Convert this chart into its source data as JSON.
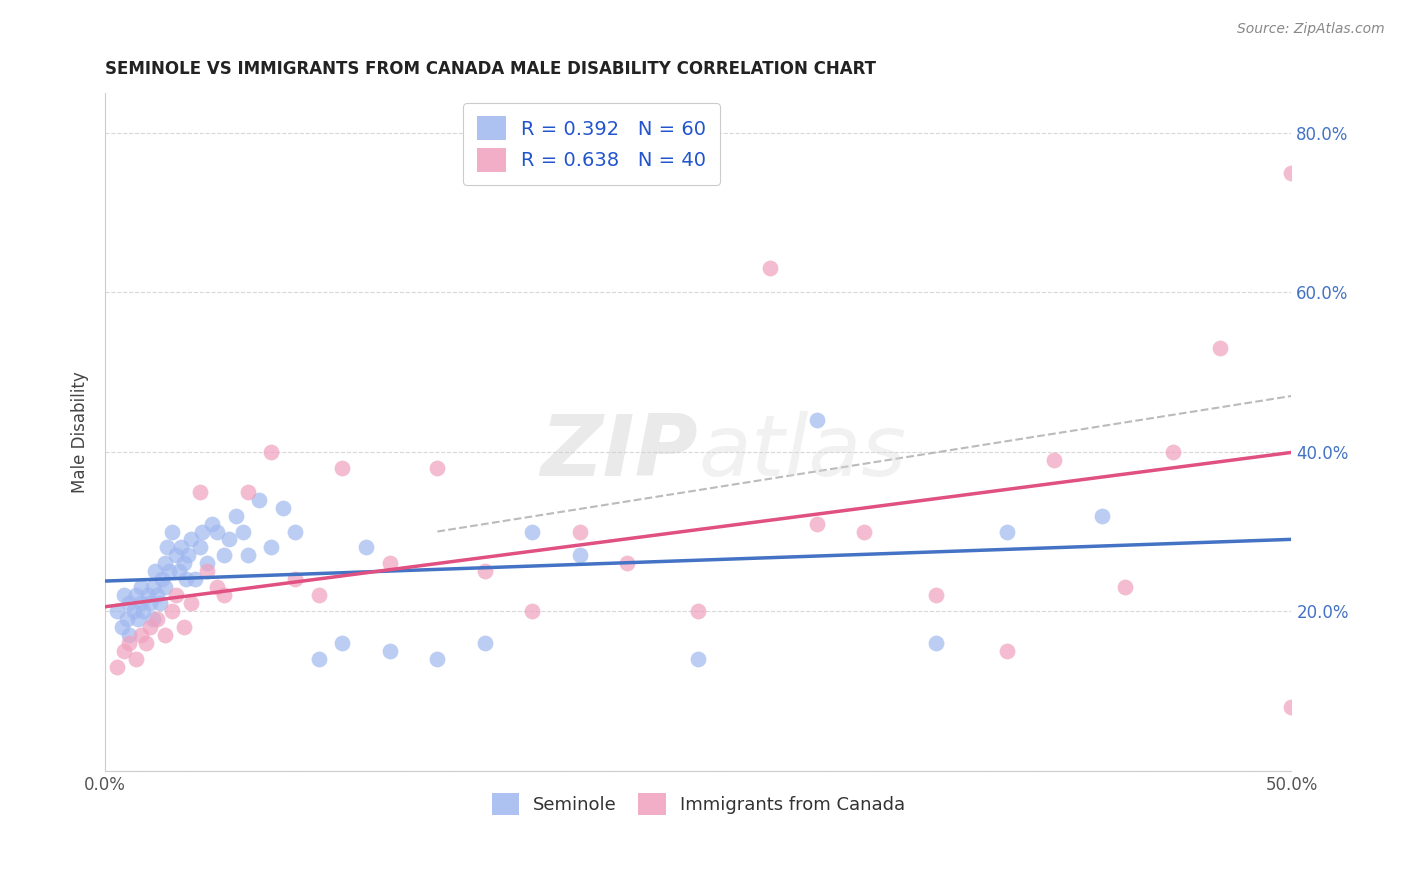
{
  "title": "SEMINOLE VS IMMIGRANTS FROM CANADA MALE DISABILITY CORRELATION CHART",
  "source": "Source: ZipAtlas.com",
  "ylabel": "Male Disability",
  "xlim": [
    0.0,
    0.5
  ],
  "ylim": [
    0.0,
    0.85
  ],
  "xticks": [
    0.0,
    0.1,
    0.2,
    0.3,
    0.4,
    0.5
  ],
  "xtick_labels": [
    "0.0%",
    "",
    "",
    "",
    "",
    "50.0%"
  ],
  "yticks": [
    0.0,
    0.2,
    0.4,
    0.6,
    0.8
  ],
  "ytick_labels": [
    "",
    "20.0%",
    "40.0%",
    "60.0%",
    "80.0%"
  ],
  "background_color": "#ffffff",
  "grid_color": "#d8d8d8",
  "seminole_color": "#a0b8f0",
  "canada_color": "#f0a0be",
  "seminole_line_color": "#4472c4",
  "canada_line_color": "#e05080",
  "dash_color": "#aaaaaa",
  "seminole_R": 0.392,
  "seminole_N": 60,
  "canada_R": 0.638,
  "canada_N": 40,
  "watermark": "ZIPatlas",
  "seminole_x": [
    0.005,
    0.007,
    0.008,
    0.009,
    0.01,
    0.01,
    0.012,
    0.013,
    0.014,
    0.015,
    0.015,
    0.016,
    0.018,
    0.019,
    0.02,
    0.02,
    0.021,
    0.022,
    0.023,
    0.024,
    0.025,
    0.025,
    0.026,
    0.027,
    0.028,
    0.03,
    0.031,
    0.032,
    0.033,
    0.034,
    0.035,
    0.036,
    0.038,
    0.04,
    0.041,
    0.043,
    0.045,
    0.047,
    0.05,
    0.052,
    0.055,
    0.058,
    0.06,
    0.065,
    0.07,
    0.075,
    0.08,
    0.09,
    0.1,
    0.11,
    0.12,
    0.14,
    0.16,
    0.18,
    0.2,
    0.25,
    0.3,
    0.35,
    0.38,
    0.42
  ],
  "seminole_y": [
    0.2,
    0.18,
    0.22,
    0.19,
    0.21,
    0.17,
    0.2,
    0.22,
    0.19,
    0.21,
    0.23,
    0.2,
    0.22,
    0.21,
    0.23,
    0.19,
    0.25,
    0.22,
    0.21,
    0.24,
    0.26,
    0.23,
    0.28,
    0.25,
    0.3,
    0.27,
    0.25,
    0.28,
    0.26,
    0.24,
    0.27,
    0.29,
    0.24,
    0.28,
    0.3,
    0.26,
    0.31,
    0.3,
    0.27,
    0.29,
    0.32,
    0.3,
    0.27,
    0.34,
    0.28,
    0.33,
    0.3,
    0.14,
    0.16,
    0.28,
    0.15,
    0.14,
    0.16,
    0.3,
    0.27,
    0.14,
    0.44,
    0.16,
    0.3,
    0.32
  ],
  "canada_x": [
    0.005,
    0.008,
    0.01,
    0.013,
    0.015,
    0.017,
    0.019,
    0.022,
    0.025,
    0.028,
    0.03,
    0.033,
    0.036,
    0.04,
    0.043,
    0.047,
    0.05,
    0.06,
    0.07,
    0.08,
    0.09,
    0.1,
    0.12,
    0.14,
    0.16,
    0.18,
    0.2,
    0.22,
    0.25,
    0.28,
    0.3,
    0.32,
    0.35,
    0.38,
    0.4,
    0.43,
    0.45,
    0.47,
    0.5,
    0.5
  ],
  "canada_y": [
    0.13,
    0.15,
    0.16,
    0.14,
    0.17,
    0.16,
    0.18,
    0.19,
    0.17,
    0.2,
    0.22,
    0.18,
    0.21,
    0.35,
    0.25,
    0.23,
    0.22,
    0.35,
    0.4,
    0.24,
    0.22,
    0.38,
    0.26,
    0.38,
    0.25,
    0.2,
    0.3,
    0.26,
    0.2,
    0.63,
    0.31,
    0.3,
    0.22,
    0.15,
    0.39,
    0.23,
    0.4,
    0.53,
    0.08,
    0.75
  ]
}
